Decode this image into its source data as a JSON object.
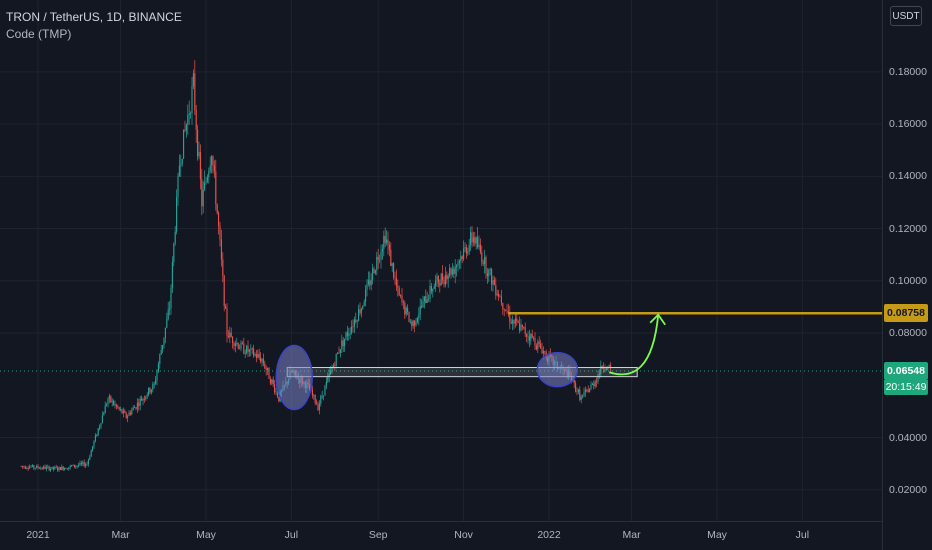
{
  "header": {
    "symbol_line": "TRON / TetherUS, 1D, BINANCE",
    "indicator_line": "Code (TMP)",
    "currency_button": "USDT"
  },
  "axis": {
    "price_ticks": [
      "0.18000",
      "0.16000",
      "0.14000",
      "0.12000",
      "0.10000",
      "0.08000",
      "0.04000",
      "0.02000"
    ],
    "time_ticks": [
      "2021",
      "Mar",
      "May",
      "Jul",
      "Sep",
      "Nov",
      "2022",
      "Mar",
      "May",
      "Jul"
    ]
  },
  "price_labels": {
    "target": "0.08758",
    "current": "0.06548",
    "countdown": "20:15:49"
  },
  "colors": {
    "background": "#131722",
    "up": "#26a69a",
    "down": "#ef5350",
    "target_line": "#c49a17",
    "current_label": "#1fa67a",
    "arrow": "#7cfc4a",
    "ellipse_fill": "#7b83c9",
    "ellipse_stroke": "#3b44c4"
  },
  "chart_data": {
    "type": "candlestick",
    "symbol": "TRON / TetherUS",
    "interval": "1D",
    "exchange": "BINANCE",
    "ylim": [
      0.0,
      0.19
    ],
    "price_axis_ticks": [
      0.02,
      0.04,
      0.08,
      0.1,
      0.12,
      0.14,
      0.16,
      0.18
    ],
    "time_axis_ticks": [
      "2021",
      "Mar",
      "May",
      "Jul",
      "Sep",
      "Nov",
      "2022",
      "Mar",
      "May",
      "Jul"
    ],
    "close_path": [
      {
        "date": "2020-12-20",
        "price": 0.029
      },
      {
        "date": "2021-01-15",
        "price": 0.028
      },
      {
        "date": "2021-02-05",
        "price": 0.03
      },
      {
        "date": "2021-02-20",
        "price": 0.055
      },
      {
        "date": "2021-03-05",
        "price": 0.048
      },
      {
        "date": "2021-03-25",
        "price": 0.06
      },
      {
        "date": "2021-04-05",
        "price": 0.09
      },
      {
        "date": "2021-04-12",
        "price": 0.145
      },
      {
        "date": "2021-04-22",
        "price": 0.175
      },
      {
        "date": "2021-04-28",
        "price": 0.13
      },
      {
        "date": "2021-05-05",
        "price": 0.15
      },
      {
        "date": "2021-05-10",
        "price": 0.12
      },
      {
        "date": "2021-05-16",
        "price": 0.08
      },
      {
        "date": "2021-05-25",
        "price": 0.075
      },
      {
        "date": "2021-06-10",
        "price": 0.07
      },
      {
        "date": "2021-06-22",
        "price": 0.055
      },
      {
        "date": "2021-07-01",
        "price": 0.065
      },
      {
        "date": "2021-07-12",
        "price": 0.06
      },
      {
        "date": "2021-07-20",
        "price": 0.052
      },
      {
        "date": "2021-08-05",
        "price": 0.075
      },
      {
        "date": "2021-08-20",
        "price": 0.09
      },
      {
        "date": "2021-09-06",
        "price": 0.118
      },
      {
        "date": "2021-09-15",
        "price": 0.095
      },
      {
        "date": "2021-09-25",
        "price": 0.083
      },
      {
        "date": "2021-10-10",
        "price": 0.098
      },
      {
        "date": "2021-10-25",
        "price": 0.105
      },
      {
        "date": "2021-11-08",
        "price": 0.117
      },
      {
        "date": "2021-11-20",
        "price": 0.102
      },
      {
        "date": "2021-12-05",
        "price": 0.085
      },
      {
        "date": "2021-12-20",
        "price": 0.078
      },
      {
        "date": "2022-01-05",
        "price": 0.068
      },
      {
        "date": "2022-01-15",
        "price": 0.064
      },
      {
        "date": "2022-01-24",
        "price": 0.055
      },
      {
        "date": "2022-02-01",
        "price": 0.06
      },
      {
        "date": "2022-02-09",
        "price": 0.068
      },
      {
        "date": "2022-02-14",
        "price": 0.0655
      }
    ],
    "horizontal_lines": [
      {
        "label": "0.08758",
        "price": 0.08758,
        "from_date": "2021-12-03",
        "to_date": "edge"
      }
    ],
    "zones": [
      {
        "type": "rectangle",
        "price_low": 0.0633,
        "price_high": 0.0668,
        "from_date": "2021-06-28",
        "to_date": "2022-03-05"
      },
      {
        "type": "ellipse",
        "center_date": "2021-07-03",
        "center_price": 0.063
      },
      {
        "type": "ellipse",
        "center_date": "2022-01-07",
        "center_price": 0.066
      }
    ],
    "arrow": {
      "from_date": "2022-02-13",
      "from_price": 0.065,
      "to_date": "2022-03-20",
      "to_price": 0.087
    },
    "last_price": 0.06548,
    "countdown": "20:15:49"
  }
}
